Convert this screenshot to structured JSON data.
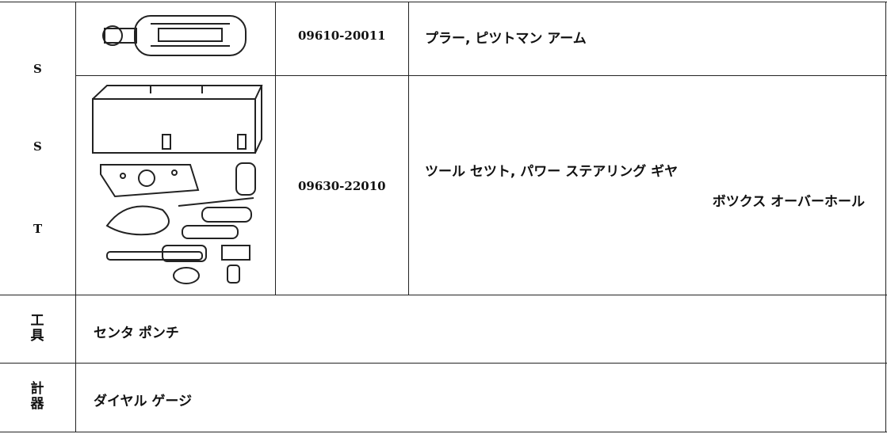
{
  "sst_label": [
    "S",
    "S",
    "T"
  ],
  "rows": [
    {
      "part_number": "09610-20011",
      "name": [
        "プラー, ピツトマン アーム"
      ]
    },
    {
      "part_number": "09630-22010",
      "name": [
        "ツール セツト, パワー ステアリング ギヤ",
        "ボツクス オーバーホール"
      ]
    }
  ],
  "tools": {
    "label": "工具",
    "name": "センタ ポンチ"
  },
  "gauges": {
    "label": "計器",
    "name": "ダイヤル ゲージ"
  }
}
